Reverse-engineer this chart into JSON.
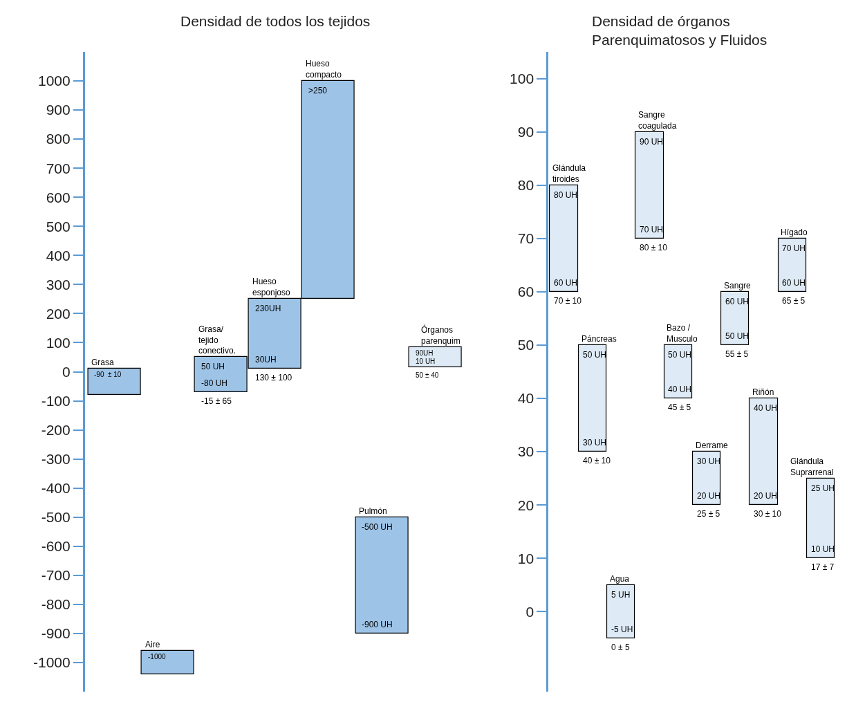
{
  "chart_data": [
    {
      "type": "bar",
      "title": "Densidad de todos los tejidos",
      "tick_labels": "y",
      "categories": [
        "Grasa",
        "Aire",
        "Grasa/\ntejido\nconectivo.",
        "Hueso\nesponjoso",
        "Hueso\ncompacto",
        "Pulmón",
        "Órganos\nparenquim"
      ],
      "base": [
        -80,
        -1040,
        -70,
        10,
        250,
        -900,
        15
      ],
      "values": [
        90,
        80,
        120,
        240,
        750,
        400,
        70
      ],
      "colors": [
        "#9dc3e6",
        "#9dc3e6",
        "#9dc3e6",
        "#9dc3e6",
        "#9dc3e6",
        "#9dc3e6",
        "#deebf7"
      ],
      "ylim": [
        -1100,
        1100
      ],
      "yticks": [
        -1000,
        -900,
        -800,
        -700,
        -600,
        -500,
        -400,
        -300,
        -200,
        -100,
        0,
        100,
        200,
        300,
        400,
        500,
        600,
        700,
        800,
        900,
        1000
      ],
      "annotations": [
        {
          "text": "-90  ± 10",
          "x": "Grasa",
          "y": 10
        },
        {
          "text": "-1000",
          "x": "Aire",
          "y": -960
        },
        {
          "text": "50 UH",
          "x": "Grasa/\ntejido\nconectivo.",
          "y": 50
        },
        {
          "text": "-80 UH",
          "x": "Grasa/\ntejido\nconectivo.",
          "y": -70
        },
        {
          "text": "-15 ± 65",
          "x": "Grasa/\ntejido\nconectivo.",
          "y": -70
        },
        {
          "text": "230UH",
          "x": "Hueso\nesponjoso",
          "y": 250
        },
        {
          "text": "30UH",
          "x": "Hueso\nesponjoso",
          "y": 10
        },
        {
          "text": "130 ± 100",
          "x": "Hueso\nesponjoso",
          "y": 10
        },
        {
          "text": ">250",
          "x": "Hueso\ncompacto",
          "y": 1000
        },
        {
          "text": "-500 UH",
          "x": "Pulmón",
          "y": -500
        },
        {
          "text": "-900 UH",
          "x": "Pulmón",
          "y": -900
        },
        {
          "text": "90UH",
          "x": "Órganos\nparenquim",
          "y": 85
        },
        {
          "text": "10 UH",
          "x": "Órganos\nparenquim",
          "y": 15
        },
        {
          "text": "50 ± 40",
          "x": "Órganos\nparenquim",
          "y": 15
        }
      ]
    },
    {
      "type": "bar",
      "title": "Densidad de órganos\nParenquimatosos y Fluidos",
      "tick_labels": "y",
      "categories": [
        "Glándula\ntiroides",
        "Páncreas",
        "Agua",
        "Sangre\ncoagulada",
        "Bazo /\nMusculo",
        "Derrame",
        "Sangre",
        "Riñón",
        "Hígado",
        "Glándula\nSuprarrenal"
      ],
      "base": [
        60,
        30,
        -5,
        70,
        40,
        20,
        50,
        20,
        60,
        10
      ],
      "values": [
        20,
        20,
        10,
        20,
        10,
        10,
        10,
        20,
        10,
        15
      ],
      "colors": [
        "#deebf7",
        "#deebf7",
        "#deebf7",
        "#deebf7",
        "#deebf7",
        "#deebf7",
        "#deebf7",
        "#deebf7",
        "#deebf7",
        "#deebf7"
      ],
      "ylim": [
        -15,
        105
      ],
      "yticks": [
        0,
        10,
        20,
        30,
        40,
        50,
        60,
        70,
        80,
        90,
        100
      ],
      "annotations": [
        {
          "text": "80 UH",
          "x": "Glándula\ntiroides",
          "y": 80
        },
        {
          "text": "60 UH",
          "x": "Glándula\ntiroides",
          "y": 60
        },
        {
          "text": "70 ± 10",
          "x": "Glándula\ntiroides",
          "y": 60
        },
        {
          "text": "50 UH",
          "x": "Páncreas",
          "y": 50
        },
        {
          "text": "30 UH",
          "x": "Páncreas",
          "y": 30
        },
        {
          "text": "40 ± 10",
          "x": "Páncreas",
          "y": 30
        },
        {
          "text": "5 UH",
          "x": "Agua",
          "y": 5
        },
        {
          "text": "-5 UH",
          "x": "Agua",
          "y": -5
        },
        {
          "text": "0 ± 5",
          "x": "Agua",
          "y": -5
        },
        {
          "text": "90 UH",
          "x": "Sangre\ncoagulada",
          "y": 90
        },
        {
          "text": "70 UH",
          "x": "Sangre\ncoagulada",
          "y": 70
        },
        {
          "text": "80 ± 10",
          "x": "Sangre\ncoagulada",
          "y": 70
        },
        {
          "text": "50 UH",
          "x": "Bazo /\nMusculo",
          "y": 50
        },
        {
          "text": "40 UH",
          "x": "Bazo /\nMusculo",
          "y": 40
        },
        {
          "text": "45 ± 5",
          "x": "Bazo /\nMusculo",
          "y": 40
        },
        {
          "text": "30 UH",
          "x": "Derrame",
          "y": 30
        },
        {
          "text": "20 UH",
          "x": "Derrame",
          "y": 20
        },
        {
          "text": "25 ± 5",
          "x": "Derrame",
          "y": 20
        },
        {
          "text": "60 UH",
          "x": "Sangre",
          "y": 60
        },
        {
          "text": "50 UH",
          "x": "Sangre",
          "y": 50
        },
        {
          "text": "55 ± 5",
          "x": "Sangre",
          "y": 50
        },
        {
          "text": "40 UH",
          "x": "Riñón",
          "y": 40
        },
        {
          "text": "20 UH",
          "x": "Riñón",
          "y": 20
        },
        {
          "text": "30 ± 10",
          "x": "Riñón",
          "y": 20
        },
        {
          "text": "70 UH",
          "x": "Hígado",
          "y": 70
        },
        {
          "text": "60 UH",
          "x": "Hígado",
          "y": 60
        },
        {
          "text": "65 ± 5",
          "x": "Hígado",
          "y": 60
        },
        {
          "text": "25 UH",
          "x": "Glándula\nSuprarrenal",
          "y": 25
        },
        {
          "text": "10 UH",
          "x": "Glándula\nSuprarrenal",
          "y": 10
        },
        {
          "text": "17 ± 7",
          "x": "Glándula\nSuprarrenal",
          "y": 10
        }
      ]
    }
  ]
}
